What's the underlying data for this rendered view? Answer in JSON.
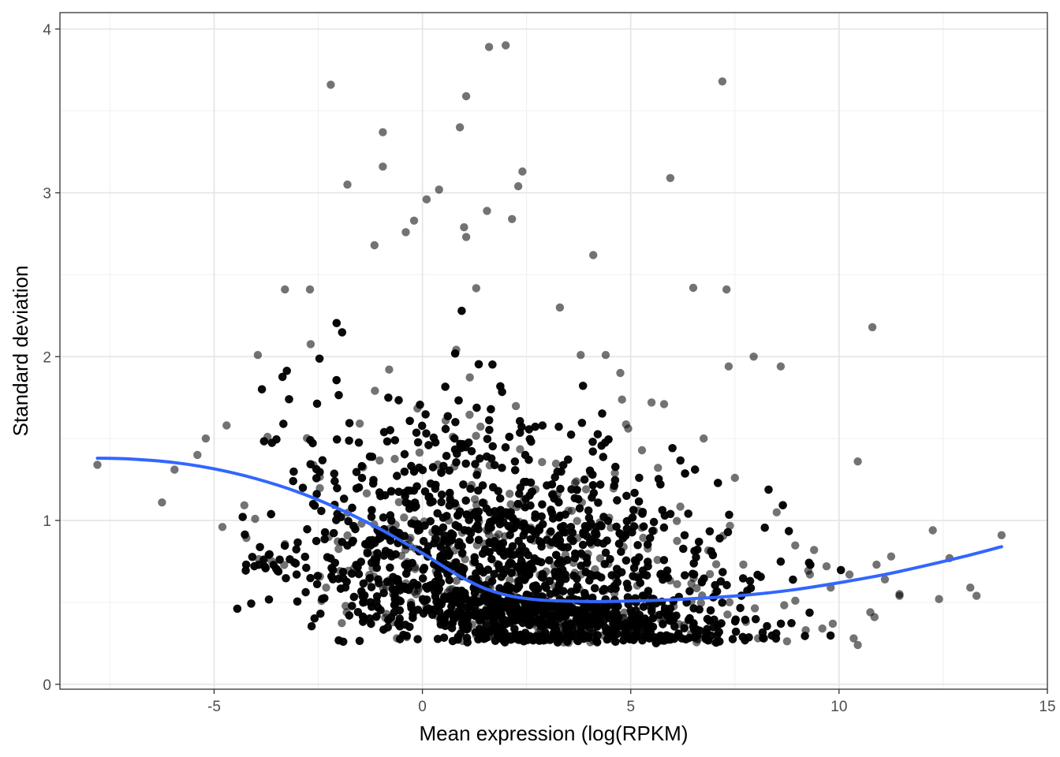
{
  "chart_data": {
    "type": "scatter",
    "title": "",
    "xlabel": "Mean expression (log(RPKM)",
    "ylabel": "Standard deviation",
    "xlim": [
      -8.7,
      15
    ],
    "ylim": [
      -0.03,
      4.1
    ],
    "x_ticks": [
      -5,
      0,
      5,
      10,
      15
    ],
    "x_tick_labels": [
      "-5",
      "0",
      "5",
      "10",
      "15"
    ],
    "y_ticks": [
      0,
      1,
      2,
      3,
      4
    ],
    "y_tick_labels": [
      "0",
      "1",
      "2",
      "3",
      "4"
    ],
    "grid": true,
    "legend": "none",
    "point_color": "#000000",
    "point_opacity": 0.55,
    "smooth_color": "#3366ff",
    "outliers": [
      {
        "x": 1.6,
        "y": 3.89
      },
      {
        "x": 2.0,
        "y": 3.9
      },
      {
        "x": -2.2,
        "y": 3.66
      },
      {
        "x": 7.2,
        "y": 3.68
      },
      {
        "x": 1.05,
        "y": 3.59
      },
      {
        "x": 0.9,
        "y": 3.4
      },
      {
        "x": -0.95,
        "y": 3.37
      },
      {
        "x": -0.95,
        "y": 3.16
      },
      {
        "x": -1.8,
        "y": 3.05
      },
      {
        "x": 2.4,
        "y": 3.13
      },
      {
        "x": 2.3,
        "y": 3.04
      },
      {
        "x": 5.95,
        "y": 3.09
      },
      {
        "x": 0.4,
        "y": 3.02
      },
      {
        "x": 0.1,
        "y": 2.96
      },
      {
        "x": 1.55,
        "y": 2.89
      },
      {
        "x": 2.15,
        "y": 2.84
      },
      {
        "x": -0.2,
        "y": 2.83
      },
      {
        "x": 1.0,
        "y": 2.79
      },
      {
        "x": -0.4,
        "y": 2.76
      },
      {
        "x": 1.05,
        "y": 2.73
      },
      {
        "x": -1.15,
        "y": 2.68
      },
      {
        "x": 4.1,
        "y": 2.62
      },
      {
        "x": 6.5,
        "y": 2.42
      },
      {
        "x": 7.3,
        "y": 2.41
      },
      {
        "x": -3.3,
        "y": 2.41
      },
      {
        "x": -2.7,
        "y": 2.41
      },
      {
        "x": 10.8,
        "y": 2.18
      },
      {
        "x": 7.95,
        "y": 2.0
      },
      {
        "x": 7.35,
        "y": 1.94
      },
      {
        "x": 8.6,
        "y": 1.94
      },
      {
        "x": 3.3,
        "y": 2.3
      },
      {
        "x": -3.95,
        "y": 2.01
      },
      {
        "x": 4.4,
        "y": 2.01
      },
      {
        "x": 3.8,
        "y": 2.01
      },
      {
        "x": 4.75,
        "y": 1.9
      },
      {
        "x": 5.5,
        "y": 1.72
      },
      {
        "x": 5.8,
        "y": 1.71
      },
      {
        "x": 6.75,
        "y": 1.5
      },
      {
        "x": 7.5,
        "y": 1.26
      },
      {
        "x": 10.45,
        "y": 1.36
      },
      {
        "x": -7.8,
        "y": 1.34
      },
      {
        "x": -6.25,
        "y": 1.11
      },
      {
        "x": -5.95,
        "y": 1.31
      },
      {
        "x": -5.4,
        "y": 1.4
      },
      {
        "x": -5.2,
        "y": 1.5
      },
      {
        "x": -4.8,
        "y": 0.96
      },
      {
        "x": -4.7,
        "y": 1.58
      },
      {
        "x": 12.25,
        "y": 0.94
      },
      {
        "x": 12.65,
        "y": 0.77
      },
      {
        "x": 13.15,
        "y": 0.59
      },
      {
        "x": 13.3,
        "y": 0.54
      },
      {
        "x": 13.9,
        "y": 0.91
      },
      {
        "x": 12.4,
        "y": 0.52
      },
      {
        "x": 11.45,
        "y": 0.55
      },
      {
        "x": 11.45,
        "y": 0.54
      },
      {
        "x": 11.25,
        "y": 0.78
      },
      {
        "x": 10.75,
        "y": 0.44
      },
      {
        "x": 10.85,
        "y": 0.41
      },
      {
        "x": 10.9,
        "y": 0.73
      },
      {
        "x": 10.35,
        "y": 0.28
      },
      {
        "x": 10.45,
        "y": 0.24
      },
      {
        "x": 10.25,
        "y": 0.67
      },
      {
        "x": 9.8,
        "y": 0.59
      },
      {
        "x": 9.85,
        "y": 0.37
      },
      {
        "x": 9.6,
        "y": 0.34
      },
      {
        "x": 9.7,
        "y": 0.72
      },
      {
        "x": 9.4,
        "y": 0.82
      },
      {
        "x": 9.2,
        "y": 0.33
      },
      {
        "x": 9.3,
        "y": 0.67
      },
      {
        "x": 8.95,
        "y": 0.51
      },
      {
        "x": 11.1,
        "y": 0.64
      }
    ],
    "smooth_line": [
      {
        "x": -7.8,
        "y": 1.38
      },
      {
        "x": -7.0,
        "y": 1.375
      },
      {
        "x": -6.0,
        "y": 1.355
      },
      {
        "x": -5.0,
        "y": 1.315
      },
      {
        "x": -4.0,
        "y": 1.255
      },
      {
        "x": -3.0,
        "y": 1.175
      },
      {
        "x": -2.0,
        "y": 1.07
      },
      {
        "x": -1.0,
        "y": 0.945
      },
      {
        "x": 0.0,
        "y": 0.8
      },
      {
        "x": 0.5,
        "y": 0.72
      },
      {
        "x": 1.0,
        "y": 0.645
      },
      {
        "x": 1.5,
        "y": 0.585
      },
      {
        "x": 2.0,
        "y": 0.545
      },
      {
        "x": 2.5,
        "y": 0.523
      },
      {
        "x": 3.0,
        "y": 0.512
      },
      {
        "x": 4.0,
        "y": 0.505
      },
      {
        "x": 5.0,
        "y": 0.508
      },
      {
        "x": 6.0,
        "y": 0.516
      },
      {
        "x": 7.0,
        "y": 0.53
      },
      {
        "x": 8.0,
        "y": 0.55
      },
      {
        "x": 9.0,
        "y": 0.58
      },
      {
        "x": 10.0,
        "y": 0.62
      },
      {
        "x": 11.0,
        "y": 0.665
      },
      {
        "x": 12.0,
        "y": 0.72
      },
      {
        "x": 13.0,
        "y": 0.78
      },
      {
        "x": 13.9,
        "y": 0.84
      }
    ]
  }
}
